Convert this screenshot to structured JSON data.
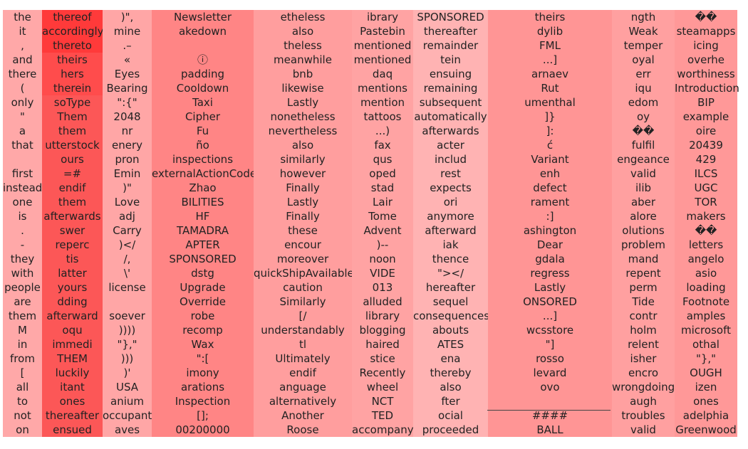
{
  "columns": [
    {
      "color": "#ffa8a8",
      "cells": [
        "the",
        "it",
        ",",
        "and",
        "there",
        "(",
        "only",
        "\"",
        "a",
        "that",
        "",
        "first",
        "instead",
        "one",
        "is",
        ".",
        "-",
        "they",
        "with",
        "people",
        "are",
        "them",
        "M",
        "in",
        "from",
        "[",
        "all",
        "to",
        "not",
        "on"
      ]
    },
    {
      "color": "#fc5757",
      "cells": [
        "thereof",
        "accordingly",
        "thereto",
        "theirs",
        "hers",
        "therein",
        "soType",
        "Them",
        "them",
        "utterstock",
        "ours",
        "=#",
        "endif",
        "them",
        "afterwards",
        "swer",
        "reperc",
        "tis",
        "latter",
        "yours",
        "dding",
        "afterward",
        "oqu",
        "immedi",
        "THEM",
        "luckily",
        "itant",
        "ones",
        "thereafter",
        "ensued"
      ]
    },
    {
      "color": "#ffa6a6",
      "cells": [
        ")\",",
        "mine",
        ".–",
        "«",
        "Eyes",
        "Bearing",
        "\":{\"",
        "2048",
        "nr",
        "enery",
        "pron",
        "Emin",
        ")\"",
        "Love",
        "adj",
        "Carry",
        ")</",
        "/,",
        "\\'",
        "license",
        "",
        "soever",
        "))))",
        "\"},\"",
        ")))",
        ")'",
        "USA",
        "anium",
        "occupant",
        "aves"
      ]
    },
    {
      "color": "#ff8585",
      "cells": [
        "Newsletter",
        "akedown",
        "",
        "ⓘ",
        "padding",
        "Cooldown",
        "Taxi",
        "Cipher",
        "Fu",
        "ño",
        "inspections",
        "externalActionCode",
        "Zhao",
        "BILITIES",
        "HF",
        "TAMADRA",
        "APTER",
        "SPONSORED",
        "dstg",
        "Upgrade",
        "Override",
        "robe",
        "recomp",
        "Wax",
        "\":[",
        "imony",
        "arations",
        "Inspection",
        "[];",
        "00200000"
      ]
    },
    {
      "color": "#ff9e9e",
      "cells": [
        "etheless",
        "also",
        "theless",
        "meanwhile",
        "bnb",
        "likewise",
        "Lastly",
        "nonetheless",
        "nevertheless",
        "also",
        "similarly",
        "however",
        "Finally",
        "Lastly",
        "Finally",
        "these",
        "encour",
        "moreover",
        "quickShipAvailable",
        "caution",
        "Similarly",
        "[/",
        "understandably",
        "tl",
        "Ultimately",
        "endif",
        "anguage",
        "alternatively",
        "Another",
        "Roose"
      ]
    },
    {
      "color": "#ffa3a3",
      "cells": [
        "ibrary",
        "Pastebin",
        "mentioned",
        "mentioned",
        "daq",
        "mentions",
        "mention",
        "tattoos",
        "...)",
        "fax",
        "qus",
        "oped",
        "stad",
        "Lair",
        "Tome",
        "Advent",
        ")--",
        "noon",
        "VIDE",
        "013",
        "alluded",
        "library",
        "blogging",
        "haired",
        "stice",
        "Recently",
        "wheel",
        "NCT",
        "TED",
        "accompany"
      ]
    },
    {
      "color": "#ffb3b3",
      "cells": [
        "SPONSORED",
        "thereafter",
        "remainder",
        "tein",
        "ensuing",
        "remaining",
        "subsequent",
        "automatically",
        "afterwards",
        "acter",
        "includ",
        "rest",
        "expects",
        "ori",
        "anymore",
        "afterward",
        "iak",
        "thence",
        "\"></",
        "hereafter",
        "sequel",
        "consequences",
        "abouts",
        "ATES",
        "ena",
        "thereby",
        "also",
        "fter",
        "ocial",
        "proceeded"
      ]
    },
    {
      "color": "#ff9595",
      "cells": [
        "theirs",
        "dylib",
        "FML",
        "...]",
        "arnaev",
        "Rut",
        "umenthal",
        "]}",
        "]:",
        "ć",
        "Variant",
        "enh",
        "defect",
        "rament",
        ":]",
        "ashington",
        "Dear",
        "gdala",
        "regress",
        "Lastly",
        "ONSORED",
        "...]",
        "wcsstore",
        "\"]",
        "rosso",
        "levard",
        "ovo",
        "",
        "####",
        "BALL"
      ]
    },
    {
      "color": "#ffa0a0",
      "cells": [
        "ngth",
        "Weak",
        "temper",
        "oyal",
        "err",
        "iqu",
        "edom",
        "oy",
        "��",
        "fulfil",
        "engeance",
        "valid",
        "ilib",
        "aber",
        "alore",
        "olutions",
        "problem",
        "mand",
        "repent",
        "perm",
        "Tide",
        "contr",
        "holm",
        "relent",
        "isher",
        "encro",
        "wrongdoing",
        "augh",
        "troubles",
        "valid"
      ]
    },
    {
      "color": "#ff9898",
      "cells": [
        "��",
        "steamapps",
        "icing",
        "overhe",
        "worthiness",
        "Introduction",
        "BIP",
        "example",
        "oire",
        "20439",
        "429",
        "ILCS",
        "UGC",
        "TOR",
        "makers",
        "��",
        "letters",
        "angelo",
        "asio",
        "loading",
        "Footnote",
        "amples",
        "microsoft",
        "othal",
        "\"},\"",
        "OUGH",
        "izen",
        "ones",
        "adelphia",
        "Greenwood"
      ]
    }
  ]
}
